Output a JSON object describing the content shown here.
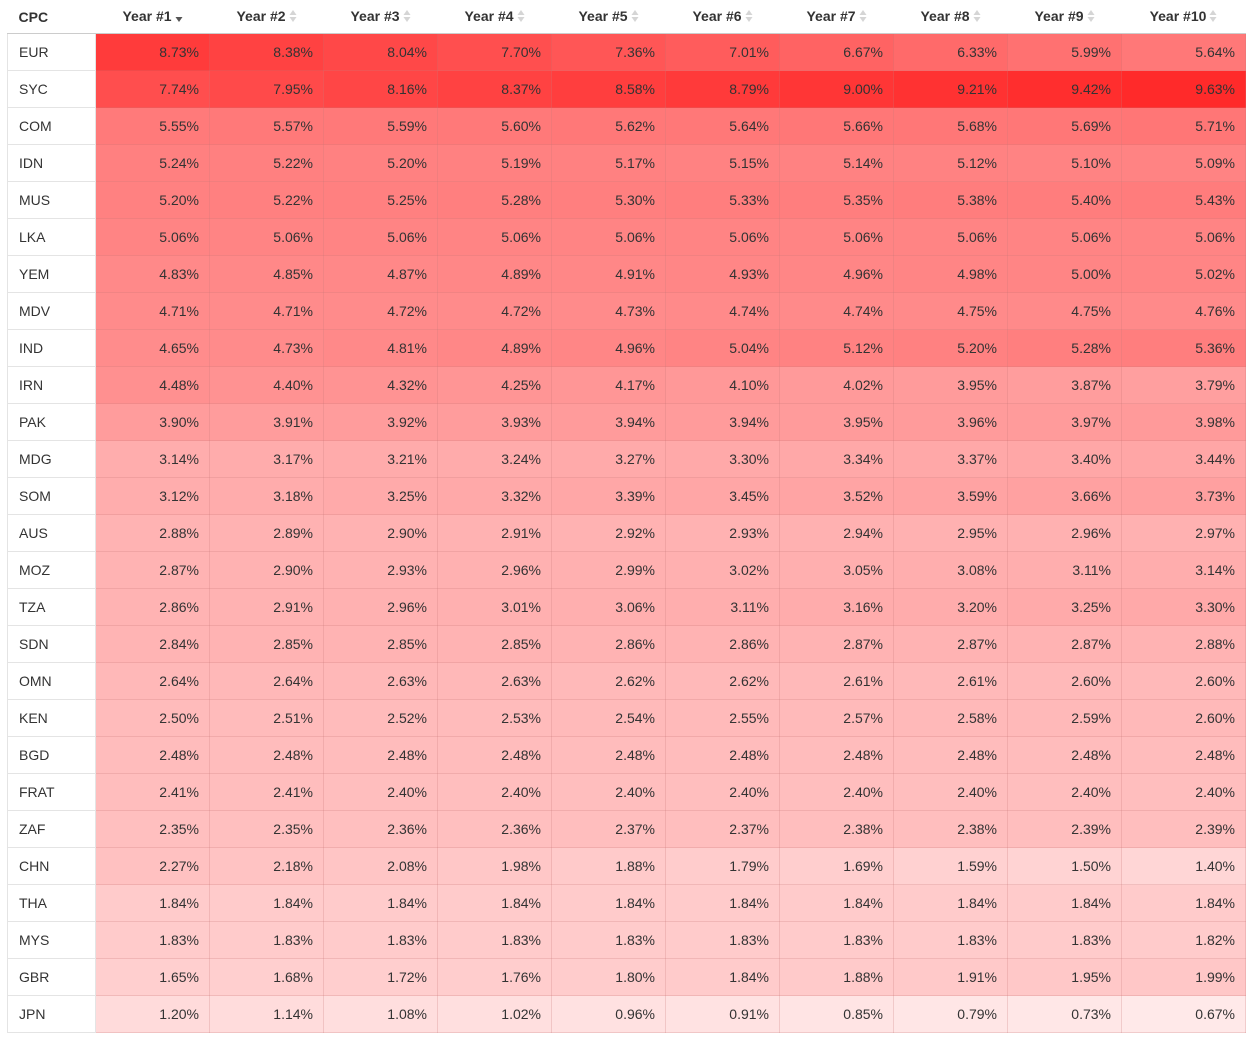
{
  "table": {
    "name_header": "CPC",
    "columns": [
      "Year #1",
      "Year #2",
      "Year #3",
      "Year #4",
      "Year #5",
      "Year #6",
      "Year #7",
      "Year #8",
      "Year #9",
      "Year #10"
    ],
    "sorted_column": "Year #1",
    "sort_direction": "descending",
    "heat_color_low": "#ffffff",
    "heat_color_high": "#ff2a2a",
    "rows": [
      {
        "name": "EUR",
        "values": [
          "8.73%",
          "8.38%",
          "8.04%",
          "7.70%",
          "7.36%",
          "7.01%",
          "6.67%",
          "6.33%",
          "5.99%",
          "5.64%"
        ]
      },
      {
        "name": "SYC",
        "values": [
          "7.74%",
          "7.95%",
          "8.16%",
          "8.37%",
          "8.58%",
          "8.79%",
          "9.00%",
          "9.21%",
          "9.42%",
          "9.63%"
        ]
      },
      {
        "name": "COM",
        "values": [
          "5.55%",
          "5.57%",
          "5.59%",
          "5.60%",
          "5.62%",
          "5.64%",
          "5.66%",
          "5.68%",
          "5.69%",
          "5.71%"
        ]
      },
      {
        "name": "IDN",
        "values": [
          "5.24%",
          "5.22%",
          "5.20%",
          "5.19%",
          "5.17%",
          "5.15%",
          "5.14%",
          "5.12%",
          "5.10%",
          "5.09%"
        ]
      },
      {
        "name": "MUS",
        "values": [
          "5.20%",
          "5.22%",
          "5.25%",
          "5.28%",
          "5.30%",
          "5.33%",
          "5.35%",
          "5.38%",
          "5.40%",
          "5.43%"
        ]
      },
      {
        "name": "LKA",
        "values": [
          "5.06%",
          "5.06%",
          "5.06%",
          "5.06%",
          "5.06%",
          "5.06%",
          "5.06%",
          "5.06%",
          "5.06%",
          "5.06%"
        ]
      },
      {
        "name": "YEM",
        "values": [
          "4.83%",
          "4.85%",
          "4.87%",
          "4.89%",
          "4.91%",
          "4.93%",
          "4.96%",
          "4.98%",
          "5.00%",
          "5.02%"
        ]
      },
      {
        "name": "MDV",
        "values": [
          "4.71%",
          "4.71%",
          "4.72%",
          "4.72%",
          "4.73%",
          "4.74%",
          "4.74%",
          "4.75%",
          "4.75%",
          "4.76%"
        ]
      },
      {
        "name": "IND",
        "values": [
          "4.65%",
          "4.73%",
          "4.81%",
          "4.89%",
          "4.96%",
          "5.04%",
          "5.12%",
          "5.20%",
          "5.28%",
          "5.36%"
        ]
      },
      {
        "name": "IRN",
        "values": [
          "4.48%",
          "4.40%",
          "4.32%",
          "4.25%",
          "4.17%",
          "4.10%",
          "4.02%",
          "3.95%",
          "3.87%",
          "3.79%"
        ]
      },
      {
        "name": "PAK",
        "values": [
          "3.90%",
          "3.91%",
          "3.92%",
          "3.93%",
          "3.94%",
          "3.94%",
          "3.95%",
          "3.96%",
          "3.97%",
          "3.98%"
        ]
      },
      {
        "name": "MDG",
        "values": [
          "3.14%",
          "3.17%",
          "3.21%",
          "3.24%",
          "3.27%",
          "3.30%",
          "3.34%",
          "3.37%",
          "3.40%",
          "3.44%"
        ]
      },
      {
        "name": "SOM",
        "values": [
          "3.12%",
          "3.18%",
          "3.25%",
          "3.32%",
          "3.39%",
          "3.45%",
          "3.52%",
          "3.59%",
          "3.66%",
          "3.73%"
        ]
      },
      {
        "name": "AUS",
        "values": [
          "2.88%",
          "2.89%",
          "2.90%",
          "2.91%",
          "2.92%",
          "2.93%",
          "2.94%",
          "2.95%",
          "2.96%",
          "2.97%"
        ]
      },
      {
        "name": "MOZ",
        "values": [
          "2.87%",
          "2.90%",
          "2.93%",
          "2.96%",
          "2.99%",
          "3.02%",
          "3.05%",
          "3.08%",
          "3.11%",
          "3.14%"
        ]
      },
      {
        "name": "TZA",
        "values": [
          "2.86%",
          "2.91%",
          "2.96%",
          "3.01%",
          "3.06%",
          "3.11%",
          "3.16%",
          "3.20%",
          "3.25%",
          "3.30%"
        ]
      },
      {
        "name": "SDN",
        "values": [
          "2.84%",
          "2.85%",
          "2.85%",
          "2.85%",
          "2.86%",
          "2.86%",
          "2.87%",
          "2.87%",
          "2.87%",
          "2.88%"
        ]
      },
      {
        "name": "OMN",
        "values": [
          "2.64%",
          "2.64%",
          "2.63%",
          "2.63%",
          "2.62%",
          "2.62%",
          "2.61%",
          "2.61%",
          "2.60%",
          "2.60%"
        ]
      },
      {
        "name": "KEN",
        "values": [
          "2.50%",
          "2.51%",
          "2.52%",
          "2.53%",
          "2.54%",
          "2.55%",
          "2.57%",
          "2.58%",
          "2.59%",
          "2.60%"
        ]
      },
      {
        "name": "BGD",
        "values": [
          "2.48%",
          "2.48%",
          "2.48%",
          "2.48%",
          "2.48%",
          "2.48%",
          "2.48%",
          "2.48%",
          "2.48%",
          "2.48%"
        ]
      },
      {
        "name": "FRAT",
        "values": [
          "2.41%",
          "2.41%",
          "2.40%",
          "2.40%",
          "2.40%",
          "2.40%",
          "2.40%",
          "2.40%",
          "2.40%",
          "2.40%"
        ]
      },
      {
        "name": "ZAF",
        "values": [
          "2.35%",
          "2.35%",
          "2.36%",
          "2.36%",
          "2.37%",
          "2.37%",
          "2.38%",
          "2.38%",
          "2.39%",
          "2.39%"
        ]
      },
      {
        "name": "CHN",
        "values": [
          "2.27%",
          "2.18%",
          "2.08%",
          "1.98%",
          "1.88%",
          "1.79%",
          "1.69%",
          "1.59%",
          "1.50%",
          "1.40%"
        ]
      },
      {
        "name": "THA",
        "values": [
          "1.84%",
          "1.84%",
          "1.84%",
          "1.84%",
          "1.84%",
          "1.84%",
          "1.84%",
          "1.84%",
          "1.84%",
          "1.84%"
        ]
      },
      {
        "name": "MYS",
        "values": [
          "1.83%",
          "1.83%",
          "1.83%",
          "1.83%",
          "1.83%",
          "1.83%",
          "1.83%",
          "1.83%",
          "1.83%",
          "1.82%"
        ]
      },
      {
        "name": "GBR",
        "values": [
          "1.65%",
          "1.68%",
          "1.72%",
          "1.76%",
          "1.80%",
          "1.84%",
          "1.88%",
          "1.91%",
          "1.95%",
          "1.99%"
        ]
      },
      {
        "name": "JPN",
        "values": [
          "1.20%",
          "1.14%",
          "1.08%",
          "1.02%",
          "0.96%",
          "0.91%",
          "0.85%",
          "0.79%",
          "0.73%",
          "0.67%"
        ]
      }
    ]
  },
  "chart_data": {
    "type": "heatmap",
    "x": [
      "Year #1",
      "Year #2",
      "Year #3",
      "Year #4",
      "Year #5",
      "Year #6",
      "Year #7",
      "Year #8",
      "Year #9",
      "Year #10"
    ],
    "y": [
      "EUR",
      "SYC",
      "COM",
      "IDN",
      "MUS",
      "LKA",
      "YEM",
      "MDV",
      "IND",
      "IRN",
      "PAK",
      "MDG",
      "SOM",
      "AUS",
      "MOZ",
      "TZA",
      "SDN",
      "OMN",
      "KEN",
      "BGD",
      "FRAT",
      "ZAF",
      "CHN",
      "THA",
      "MYS",
      "GBR",
      "JPN"
    ],
    "values": [
      [
        8.73,
        8.38,
        8.04,
        7.7,
        7.36,
        7.01,
        6.67,
        6.33,
        5.99,
        5.64
      ],
      [
        7.74,
        7.95,
        8.16,
        8.37,
        8.58,
        8.79,
        9.0,
        9.21,
        9.42,
        9.63
      ],
      [
        5.55,
        5.57,
        5.59,
        5.6,
        5.62,
        5.64,
        5.66,
        5.68,
        5.69,
        5.71
      ],
      [
        5.24,
        5.22,
        5.2,
        5.19,
        5.17,
        5.15,
        5.14,
        5.12,
        5.1,
        5.09
      ],
      [
        5.2,
        5.22,
        5.25,
        5.28,
        5.3,
        5.33,
        5.35,
        5.38,
        5.4,
        5.43
      ],
      [
        5.06,
        5.06,
        5.06,
        5.06,
        5.06,
        5.06,
        5.06,
        5.06,
        5.06,
        5.06
      ],
      [
        4.83,
        4.85,
        4.87,
        4.89,
        4.91,
        4.93,
        4.96,
        4.98,
        5.0,
        5.02
      ],
      [
        4.71,
        4.71,
        4.72,
        4.72,
        4.73,
        4.74,
        4.74,
        4.75,
        4.75,
        4.76
      ],
      [
        4.65,
        4.73,
        4.81,
        4.89,
        4.96,
        5.04,
        5.12,
        5.2,
        5.28,
        5.36
      ],
      [
        4.48,
        4.4,
        4.32,
        4.25,
        4.17,
        4.1,
        4.02,
        3.95,
        3.87,
        3.79
      ],
      [
        3.9,
        3.91,
        3.92,
        3.93,
        3.94,
        3.94,
        3.95,
        3.96,
        3.97,
        3.98
      ],
      [
        3.14,
        3.17,
        3.21,
        3.24,
        3.27,
        3.3,
        3.34,
        3.37,
        3.4,
        3.44
      ],
      [
        3.12,
        3.18,
        3.25,
        3.32,
        3.39,
        3.45,
        3.52,
        3.59,
        3.66,
        3.73
      ],
      [
        2.88,
        2.89,
        2.9,
        2.91,
        2.92,
        2.93,
        2.94,
        2.95,
        2.96,
        2.97
      ],
      [
        2.87,
        2.9,
        2.93,
        2.96,
        2.99,
        3.02,
        3.05,
        3.08,
        3.11,
        3.14
      ],
      [
        2.86,
        2.91,
        2.96,
        3.01,
        3.06,
        3.11,
        3.16,
        3.2,
        3.25,
        3.3
      ],
      [
        2.84,
        2.85,
        2.85,
        2.85,
        2.86,
        2.86,
        2.87,
        2.87,
        2.87,
        2.88
      ],
      [
        2.64,
        2.64,
        2.63,
        2.63,
        2.62,
        2.62,
        2.61,
        2.61,
        2.6,
        2.6
      ],
      [
        2.5,
        2.51,
        2.52,
        2.53,
        2.54,
        2.55,
        2.57,
        2.58,
        2.59,
        2.6
      ],
      [
        2.48,
        2.48,
        2.48,
        2.48,
        2.48,
        2.48,
        2.48,
        2.48,
        2.48,
        2.48
      ],
      [
        2.41,
        2.41,
        2.4,
        2.4,
        2.4,
        2.4,
        2.4,
        2.4,
        2.4,
        2.4
      ],
      [
        2.35,
        2.35,
        2.36,
        2.36,
        2.37,
        2.37,
        2.38,
        2.38,
        2.39,
        2.39
      ],
      [
        2.27,
        2.18,
        2.08,
        1.98,
        1.88,
        1.79,
        1.69,
        1.59,
        1.5,
        1.4
      ],
      [
        1.84,
        1.84,
        1.84,
        1.84,
        1.84,
        1.84,
        1.84,
        1.84,
        1.84,
        1.84
      ],
      [
        1.83,
        1.83,
        1.83,
        1.83,
        1.83,
        1.83,
        1.83,
        1.83,
        1.83,
        1.82
      ],
      [
        1.65,
        1.68,
        1.72,
        1.76,
        1.8,
        1.84,
        1.88,
        1.91,
        1.95,
        1.99
      ],
      [
        1.2,
        1.14,
        1.08,
        1.02,
        0.96,
        0.91,
        0.85,
        0.79,
        0.73,
        0.67
      ]
    ],
    "unit": "%"
  }
}
